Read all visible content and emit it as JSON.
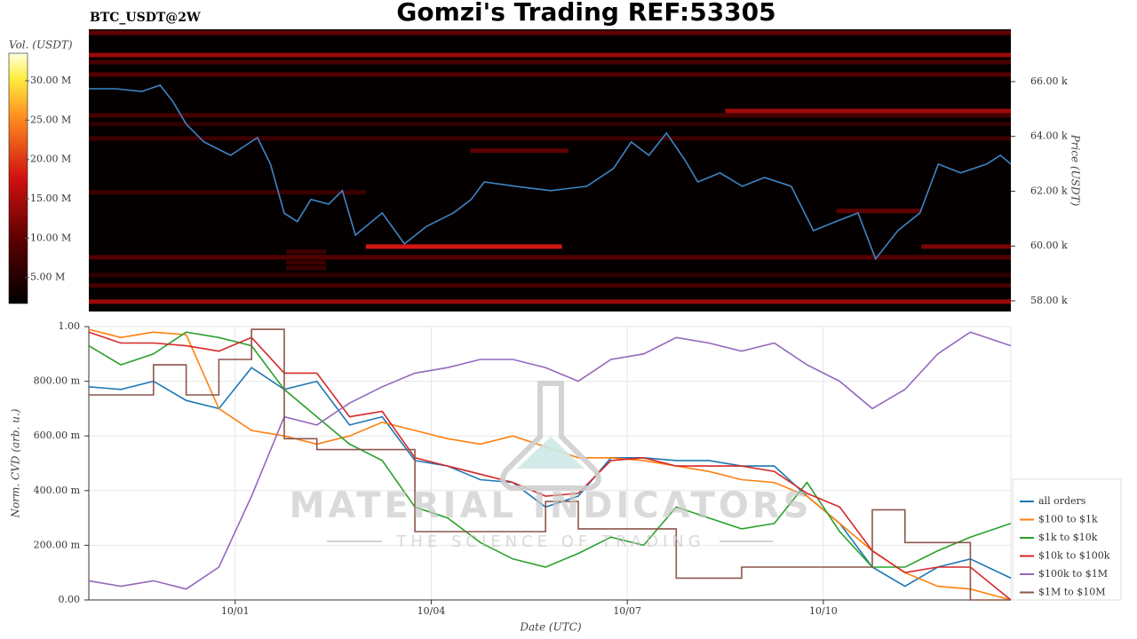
{
  "title": "Gomzi's Trading REF:53305",
  "watermark": {
    "brand": "MATERIAL INDICATORS",
    "tagline": "THE SCIENCE OF TRADING"
  },
  "chart_data": [
    {
      "type": "heatmap",
      "label": "BTC_USDT@2W",
      "ylabel": "Price (USDT)",
      "xlim": [
        -2.24,
        11.87
      ],
      "ylim": [
        57610,
        67910
      ],
      "yticks": [
        {
          "value": 58000,
          "label": "58.00 k"
        },
        {
          "value": 60000,
          "label": "60.00 k"
        },
        {
          "value": 62000,
          "label": "62.00 k"
        },
        {
          "value": 64000,
          "label": "64.00 k"
        },
        {
          "value": 66000,
          "label": "66.00 k"
        }
      ],
      "colorbar": {
        "label": "Vol. (USDT)",
        "lim": [
          1700000,
          33500000
        ],
        "ticks": [
          {
            "value": 5000000,
            "label": "5.00 M"
          },
          {
            "value": 10000000,
            "label": "10.00 M"
          },
          {
            "value": 15000000,
            "label": "15.00 M"
          },
          {
            "value": 20000000,
            "label": "20.00 M"
          },
          {
            "value": 25000000,
            "label": "25.00 M"
          },
          {
            "value": 30000000,
            "label": "30.00 M"
          }
        ]
      },
      "bands": [
        {
          "price": 67780,
          "x0": -2.24,
          "x1": 11.87,
          "volume": 10000000
        },
        {
          "price": 66970,
          "x0": -2.24,
          "x1": 11.87,
          "volume": 14000000
        },
        {
          "price": 66710,
          "x0": -2.24,
          "x1": 11.87,
          "volume": 8000000
        },
        {
          "price": 66260,
          "x0": -2.24,
          "x1": 11.87,
          "volume": 9000000
        },
        {
          "price": 64930,
          "x0": 7.5,
          "x1": 11.87,
          "volume": 14000000
        },
        {
          "price": 64770,
          "x0": -2.24,
          "x1": 11.87,
          "volume": 8000000
        },
        {
          "price": 64450,
          "x0": -2.24,
          "x1": 11.87,
          "volume": 6000000
        },
        {
          "price": 63930,
          "x0": -2.24,
          "x1": 11.87,
          "volume": 7000000
        },
        {
          "price": 63480,
          "x0": 3.6,
          "x1": 5.1,
          "volume": 10000000
        },
        {
          "price": 61960,
          "x0": -2.24,
          "x1": 2,
          "volume": 7000000
        },
        {
          "price": 61280,
          "x0": 9.2,
          "x1": 10.5,
          "volume": 10000000
        },
        {
          "price": 59980,
          "x0": 2,
          "x1": 5,
          "volume": 18000000
        },
        {
          "price": 59980,
          "x0": 10.5,
          "x1": 11.87,
          "volume": 12000000
        },
        {
          "price": 59800,
          "x0": 0.78,
          "x1": 1.39,
          "volume": 7000000
        },
        {
          "price": 59600,
          "x0": 0.78,
          "x1": 1.39,
          "volume": 7000000
        },
        {
          "price": 59590,
          "x0": -2.24,
          "x1": 11.87,
          "volume": 9000000
        },
        {
          "price": 59400,
          "x0": 0.78,
          "x1": 1.39,
          "volume": 7000000
        },
        {
          "price": 59200,
          "x0": 0.78,
          "x1": 1.39,
          "volume": 7000000
        },
        {
          "price": 58940,
          "x0": -2.24,
          "x1": 11.87,
          "volume": 6000000
        },
        {
          "price": 58560,
          "x0": -2.24,
          "x1": 11.87,
          "volume": 8000000
        },
        {
          "price": 57970,
          "x0": -2.24,
          "x1": 11.87,
          "volume": 14000000
        }
      ],
      "price_line": {
        "color": "#3d85c6",
        "x": [
          -2.24,
          -1.83,
          -1.43,
          -1.15,
          -0.95,
          -0.75,
          -0.48,
          -0.07,
          0.34,
          0.54,
          0.75,
          0.95,
          1.16,
          1.43,
          1.64,
          1.84,
          2.25,
          2.59,
          2.93,
          3.34,
          3.61,
          3.81,
          4.29,
          4.83,
          5.38,
          5.79,
          6.06,
          6.33,
          6.6,
          6.88,
          7.08,
          7.42,
          7.76,
          8.1,
          8.51,
          8.85,
          9.19,
          9.53,
          9.8,
          10.14,
          10.48,
          10.76,
          11.1,
          11.5,
          11.71,
          11.87
        ],
        "values": [
          65740,
          65740,
          65640,
          65870,
          65260,
          64450,
          63800,
          63310,
          63960,
          62990,
          61200,
          60890,
          61700,
          61530,
          62020,
          60400,
          61210,
          60080,
          60720,
          61210,
          61700,
          62340,
          62180,
          62020,
          62180,
          62830,
          63800,
          63310,
          64120,
          63150,
          62340,
          62670,
          62180,
          62500,
          62180,
          60560,
          60890,
          61210,
          59530,
          60560,
          61210,
          62990,
          62670,
          62990,
          63310,
          62990
        ]
      }
    },
    {
      "type": "line",
      "xlabel": "Date (UTC)",
      "ylabel": "Norm. CVD (arb. u.)",
      "xlim": [
        -2.24,
        11.87
      ],
      "xticks": [
        {
          "value": 0,
          "label": "10/01"
        },
        {
          "value": 3,
          "label": "10/04"
        },
        {
          "value": 6,
          "label": "10/07"
        },
        {
          "value": 9,
          "label": "10/10"
        }
      ],
      "ylim": [
        0,
        1
      ],
      "yticks": [
        {
          "value": 0,
          "label": "0.00"
        },
        {
          "value": 0.2,
          "label": "200.00 m"
        },
        {
          "value": 0.4,
          "label": "400.00 m"
        },
        {
          "value": 0.6,
          "label": "600.00 m"
        },
        {
          "value": 0.8,
          "label": "800.00 m"
        },
        {
          "value": 1,
          "label": "1.00"
        }
      ],
      "grid": true,
      "legend": "lower right",
      "x": [
        -2.24,
        -1.75,
        -1.25,
        -0.75,
        -0.25,
        0.25,
        0.75,
        1.25,
        1.75,
        2.25,
        2.75,
        3.25,
        3.75,
        4.25,
        4.75,
        5.25,
        5.75,
        6.25,
        6.75,
        7.25,
        7.75,
        8.25,
        8.75,
        9.25,
        9.75,
        10.25,
        10.75,
        11.25,
        11.87
      ],
      "series": [
        {
          "name": "all orders",
          "color": "#1f77b4",
          "values": [
            0.78,
            0.77,
            0.8,
            0.73,
            0.7,
            0.85,
            0.77,
            0.8,
            0.64,
            0.67,
            0.51,
            0.49,
            0.44,
            0.43,
            0.34,
            0.38,
            0.52,
            0.52,
            0.51,
            0.51,
            0.49,
            0.49,
            0.38,
            0.28,
            0.12,
            0.05,
            0.12,
            0.15,
            0.08
          ]
        },
        {
          "name": "$100 to $1k",
          "color": "#ff7f0e",
          "values": [
            0.99,
            0.96,
            0.98,
            0.97,
            0.7,
            0.62,
            0.6,
            0.57,
            0.6,
            0.65,
            0.62,
            0.59,
            0.57,
            0.6,
            0.56,
            0.52,
            0.52,
            0.51,
            0.49,
            0.47,
            0.44,
            0.43,
            0.38,
            0.28,
            0.18,
            0.1,
            0.05,
            0.04,
            0
          ]
        },
        {
          "name": "$1k to $10k",
          "color": "#2ca02c",
          "values": [
            0.93,
            0.86,
            0.9,
            0.98,
            0.96,
            0.93,
            0.77,
            0.67,
            0.57,
            0.51,
            0.34,
            0.3,
            0.21,
            0.15,
            0.12,
            0.17,
            0.23,
            0.2,
            0.34,
            0.3,
            0.26,
            0.28,
            0.43,
            0.25,
            0.12,
            0.12,
            0.18,
            0.23,
            0.28
          ]
        },
        {
          "name": "$10k to $100k",
          "color": "#d62728",
          "values": [
            0.98,
            0.94,
            0.94,
            0.93,
            0.91,
            0.96,
            0.83,
            0.83,
            0.67,
            0.69,
            0.52,
            0.49,
            0.46,
            0.43,
            0.38,
            0.39,
            0.51,
            0.52,
            0.49,
            0.49,
            0.49,
            0.47,
            0.39,
            0.34,
            0.18,
            0.1,
            0.12,
            0.12,
            0
          ]
        },
        {
          "name": "$100k to $1M",
          "color": "#9467bd",
          "values": [
            0.07,
            0.05,
            0.07,
            0.04,
            0.12,
            0.38,
            0.67,
            0.64,
            0.72,
            0.78,
            0.83,
            0.85,
            0.88,
            0.88,
            0.85,
            0.8,
            0.88,
            0.9,
            0.96,
            0.94,
            0.91,
            0.94,
            0.86,
            0.8,
            0.7,
            0.77,
            0.9,
            0.98,
            0.93
          ]
        },
        {
          "name": "$1M to $10M",
          "color": "#8c564b",
          "drawstyle": "steps-post",
          "values": [
            0.75,
            0.75,
            0.86,
            0.75,
            0.88,
            0.99,
            0.59,
            0.55,
            0.55,
            0.55,
            0.25,
            0.25,
            0.25,
            0.25,
            0.36,
            0.26,
            0.26,
            0.26,
            0.08,
            0.08,
            0.12,
            0.12,
            0.12,
            0.12,
            0.33,
            0.21,
            0.21,
            0,
            0
          ]
        }
      ]
    }
  ]
}
